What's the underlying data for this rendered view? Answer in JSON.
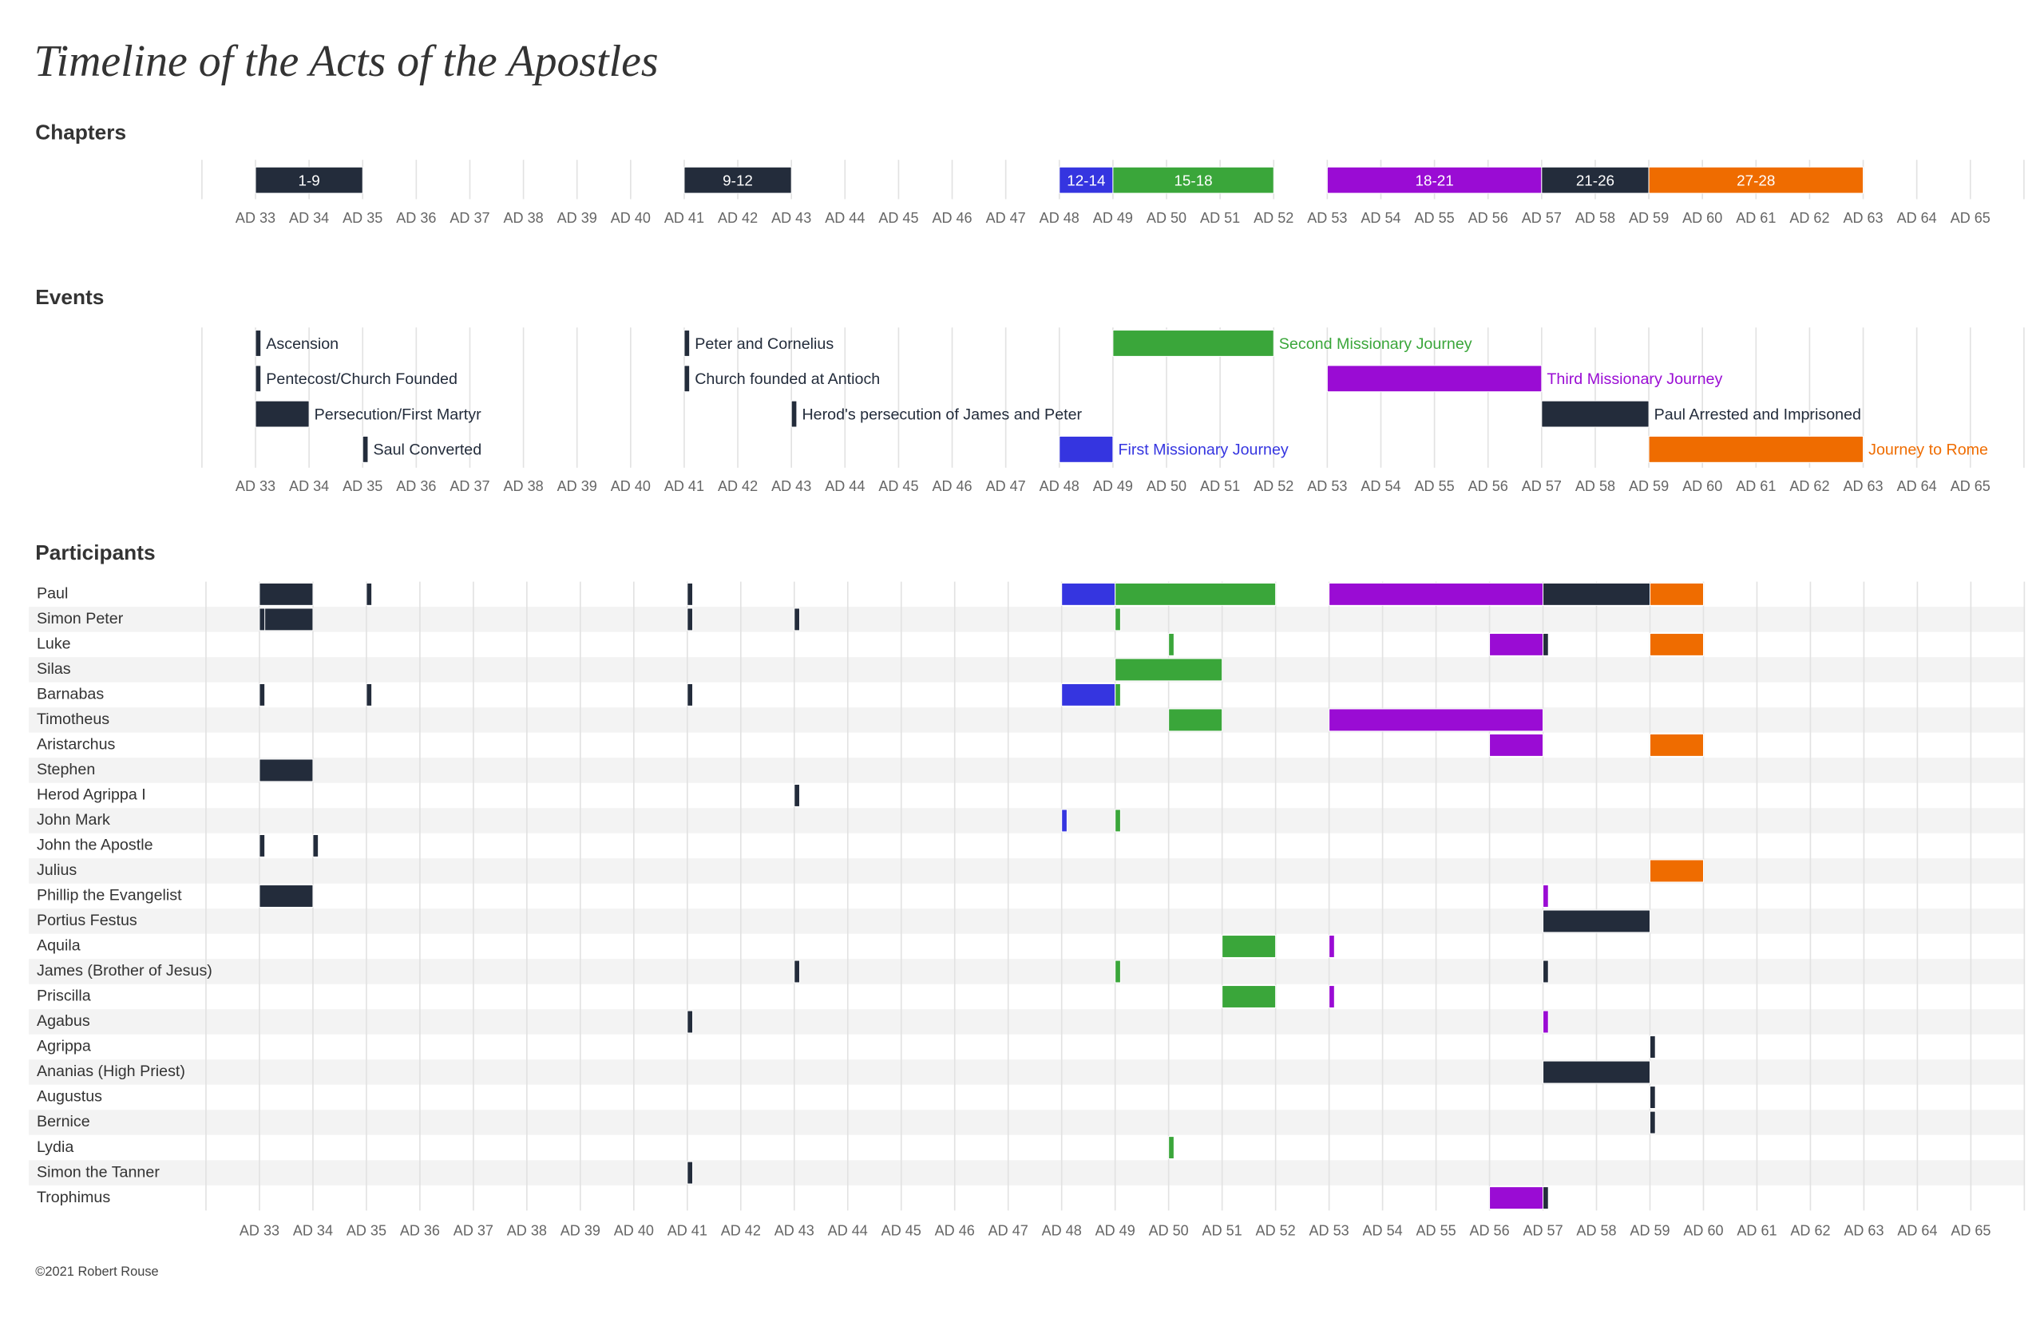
{
  "title": "Timeline of the Acts of the Apostles",
  "footer": "©2021 Robert Rouse",
  "chart_data": [
    {
      "type": "gantt",
      "title": "Chapters",
      "label_position": "inside",
      "xlim": [
        32,
        66
      ],
      "xticks": [
        {
          "value": 33,
          "label": "AD 33"
        },
        {
          "value": 34,
          "label": "AD 34"
        },
        {
          "value": 35,
          "label": "AD 35"
        },
        {
          "value": 36,
          "label": "AD 36"
        },
        {
          "value": 37,
          "label": "AD 37"
        },
        {
          "value": 38,
          "label": "AD 38"
        },
        {
          "value": 39,
          "label": "AD 39"
        },
        {
          "value": 40,
          "label": "AD 40"
        },
        {
          "value": 41,
          "label": "AD 41"
        },
        {
          "value": 42,
          "label": "AD 42"
        },
        {
          "value": 43,
          "label": "AD 43"
        },
        {
          "value": 44,
          "label": "AD 44"
        },
        {
          "value": 45,
          "label": "AD 45"
        },
        {
          "value": 46,
          "label": "AD 46"
        },
        {
          "value": 47,
          "label": "AD 47"
        },
        {
          "value": 48,
          "label": "AD 48"
        },
        {
          "value": 49,
          "label": "AD 49"
        },
        {
          "value": 50,
          "label": "AD 50"
        },
        {
          "value": 51,
          "label": "AD 51"
        },
        {
          "value": 52,
          "label": "AD 52"
        },
        {
          "value": 53,
          "label": "AD 53"
        },
        {
          "value": 54,
          "label": "AD 54"
        },
        {
          "value": 55,
          "label": "AD 55"
        },
        {
          "value": 56,
          "label": "AD 56"
        },
        {
          "value": 57,
          "label": "AD 57"
        },
        {
          "value": 58,
          "label": "AD 58"
        },
        {
          "value": 59,
          "label": "AD 59"
        },
        {
          "value": 60,
          "label": "AD 60"
        },
        {
          "value": 61,
          "label": "AD 61"
        },
        {
          "value": 62,
          "label": "AD 62"
        },
        {
          "value": 63,
          "label": "AD 63"
        },
        {
          "value": 64,
          "label": "AD 64"
        },
        {
          "value": 65,
          "label": "AD 65"
        }
      ],
      "rows": [
        {
          "bars": [
            {
              "label": "1-9",
              "start": 33,
              "end": 35,
              "color": "#232c3b"
            },
            {
              "label": "9-12",
              "start": 41,
              "end": 43,
              "color": "#232c3b"
            },
            {
              "label": "12-14",
              "start": 48,
              "end": 49,
              "color": "#3535e0"
            },
            {
              "label": "15-18",
              "start": 49,
              "end": 52,
              "color": "#3aa63a"
            },
            {
              "label": "18-21",
              "start": 53,
              "end": 57,
              "color": "#9a0cd4"
            },
            {
              "label": "21-26",
              "start": 57,
              "end": 59,
              "color": "#232c3b"
            },
            {
              "label": "27-28",
              "start": 59,
              "end": 63,
              "color": "#ef6c00"
            }
          ]
        }
      ]
    },
    {
      "type": "gantt",
      "title": "Events",
      "label_position": "right",
      "xlim": [
        32,
        66
      ],
      "xticks": [
        {
          "value": 33,
          "label": "AD 33"
        },
        {
          "value": 34,
          "label": "AD 34"
        },
        {
          "value": 35,
          "label": "AD 35"
        },
        {
          "value": 36,
          "label": "AD 36"
        },
        {
          "value": 37,
          "label": "AD 37"
        },
        {
          "value": 38,
          "label": "AD 38"
        },
        {
          "value": 39,
          "label": "AD 39"
        },
        {
          "value": 40,
          "label": "AD 40"
        },
        {
          "value": 41,
          "label": "AD 41"
        },
        {
          "value": 42,
          "label": "AD 42"
        },
        {
          "value": 43,
          "label": "AD 43"
        },
        {
          "value": 44,
          "label": "AD 44"
        },
        {
          "value": 45,
          "label": "AD 45"
        },
        {
          "value": 46,
          "label": "AD 46"
        },
        {
          "value": 47,
          "label": "AD 47"
        },
        {
          "value": 48,
          "label": "AD 48"
        },
        {
          "value": 49,
          "label": "AD 49"
        },
        {
          "value": 50,
          "label": "AD 50"
        },
        {
          "value": 51,
          "label": "AD 51"
        },
        {
          "value": 52,
          "label": "AD 52"
        },
        {
          "value": 53,
          "label": "AD 53"
        },
        {
          "value": 54,
          "label": "AD 54"
        },
        {
          "value": 55,
          "label": "AD 55"
        },
        {
          "value": 56,
          "label": "AD 56"
        },
        {
          "value": 57,
          "label": "AD 57"
        },
        {
          "value": 58,
          "label": "AD 58"
        },
        {
          "value": 59,
          "label": "AD 59"
        },
        {
          "value": 60,
          "label": "AD 60"
        },
        {
          "value": 61,
          "label": "AD 61"
        },
        {
          "value": 62,
          "label": "AD 62"
        },
        {
          "value": 63,
          "label": "AD 63"
        },
        {
          "value": 64,
          "label": "AD 64"
        },
        {
          "value": 65,
          "label": "AD 65"
        }
      ],
      "rows": [
        {
          "bars": [
            {
              "label": "Ascension",
              "start": 33,
              "end": 33.1,
              "color": "#232c3b"
            },
            {
              "label": "Peter and Cornelius",
              "start": 41,
              "end": 41.1,
              "color": "#232c3b"
            },
            {
              "label": "Second Missionary Journey",
              "start": 49,
              "end": 52,
              "color": "#3aa63a"
            }
          ]
        },
        {
          "bars": [
            {
              "label": "Pentecost/Church Founded",
              "start": 33,
              "end": 33.1,
              "color": "#232c3b"
            },
            {
              "label": "Church founded at Antioch",
              "start": 41,
              "end": 41.1,
              "color": "#232c3b"
            },
            {
              "label": "Third Missionary Journey",
              "start": 53,
              "end": 57,
              "color": "#9a0cd4"
            }
          ]
        },
        {
          "bars": [
            {
              "label": "Persecution/First Martyr",
              "start": 33,
              "end": 34,
              "color": "#232c3b"
            },
            {
              "label": "Herod's persecution of James and Peter",
              "start": 43,
              "end": 43.1,
              "color": "#232c3b"
            },
            {
              "label": "Paul Arrested and Imprisoned",
              "start": 57,
              "end": 59,
              "color": "#232c3b"
            }
          ]
        },
        {
          "bars": [
            {
              "label": "Saul Converted",
              "start": 35,
              "end": 35.1,
              "color": "#232c3b"
            },
            {
              "label": "First Missionary Journey",
              "start": 48,
              "end": 49,
              "color": "#3535e0"
            },
            {
              "label": "Journey to Rome",
              "start": 59,
              "end": 63,
              "color": "#ef6c00"
            }
          ]
        }
      ]
    },
    {
      "type": "gantt",
      "title": "Participants",
      "xlim": [
        32,
        66
      ],
      "xticks": [
        {
          "value": 33,
          "label": "AD 33"
        },
        {
          "value": 34,
          "label": "AD 34"
        },
        {
          "value": 35,
          "label": "AD 35"
        },
        {
          "value": 36,
          "label": "AD 36"
        },
        {
          "value": 37,
          "label": "AD 37"
        },
        {
          "value": 38,
          "label": "AD 38"
        },
        {
          "value": 39,
          "label": "AD 39"
        },
        {
          "value": 40,
          "label": "AD 40"
        },
        {
          "value": 41,
          "label": "AD 41"
        },
        {
          "value": 42,
          "label": "AD 42"
        },
        {
          "value": 43,
          "label": "AD 43"
        },
        {
          "value": 44,
          "label": "AD 44"
        },
        {
          "value": 45,
          "label": "AD 45"
        },
        {
          "value": 46,
          "label": "AD 46"
        },
        {
          "value": 47,
          "label": "AD 47"
        },
        {
          "value": 48,
          "label": "AD 48"
        },
        {
          "value": 49,
          "label": "AD 49"
        },
        {
          "value": 50,
          "label": "AD 50"
        },
        {
          "value": 51,
          "label": "AD 51"
        },
        {
          "value": 52,
          "label": "AD 52"
        },
        {
          "value": 53,
          "label": "AD 53"
        },
        {
          "value": 54,
          "label": "AD 54"
        },
        {
          "value": 55,
          "label": "AD 55"
        },
        {
          "value": 56,
          "label": "AD 56"
        },
        {
          "value": 57,
          "label": "AD 57"
        },
        {
          "value": 58,
          "label": "AD 58"
        },
        {
          "value": 59,
          "label": "AD 59"
        },
        {
          "value": 60,
          "label": "AD 60"
        },
        {
          "value": 61,
          "label": "AD 61"
        },
        {
          "value": 62,
          "label": "AD 62"
        },
        {
          "value": 63,
          "label": "AD 63"
        },
        {
          "value": 64,
          "label": "AD 64"
        },
        {
          "value": 65,
          "label": "AD 65"
        }
      ],
      "rows": [
        {
          "name": "Paul",
          "bars": [
            {
              "start": 33,
              "end": 34,
              "color": "#232c3b"
            },
            {
              "start": 35,
              "end": 35.1,
              "color": "#232c3b"
            },
            {
              "start": 41,
              "end": 41.1,
              "color": "#232c3b"
            },
            {
              "start": 48,
              "end": 49,
              "color": "#3535e0"
            },
            {
              "start": 49,
              "end": 52,
              "color": "#3aa63a"
            },
            {
              "start": 53,
              "end": 57,
              "color": "#9a0cd4"
            },
            {
              "start": 57,
              "end": 59,
              "color": "#232c3b"
            },
            {
              "start": 59,
              "end": 60,
              "color": "#ef6c00"
            }
          ]
        },
        {
          "name": "Simon Peter",
          "bars": [
            {
              "start": 33,
              "end": 34,
              "color": "#232c3b"
            },
            {
              "start": 33,
              "end": 33.1,
              "color": "#232c3b"
            },
            {
              "start": 41,
              "end": 41.1,
              "color": "#232c3b"
            },
            {
              "start": 43,
              "end": 43.1,
              "color": "#232c3b"
            },
            {
              "start": 49,
              "end": 49.1,
              "color": "#3aa63a"
            }
          ]
        },
        {
          "name": "Luke",
          "bars": [
            {
              "start": 50,
              "end": 50.1,
              "color": "#3aa63a"
            },
            {
              "start": 56,
              "end": 57,
              "color": "#9a0cd4"
            },
            {
              "start": 57,
              "end": 57.1,
              "color": "#232c3b"
            },
            {
              "start": 59,
              "end": 60,
              "color": "#ef6c00"
            }
          ]
        },
        {
          "name": "Silas",
          "bars": [
            {
              "start": 49,
              "end": 51,
              "color": "#3aa63a"
            }
          ]
        },
        {
          "name": "Barnabas",
          "bars": [
            {
              "start": 33,
              "end": 33.1,
              "color": "#232c3b"
            },
            {
              "start": 35,
              "end": 35.1,
              "color": "#232c3b"
            },
            {
              "start": 41,
              "end": 41.1,
              "color": "#232c3b"
            },
            {
              "start": 48,
              "end": 49,
              "color": "#3535e0"
            },
            {
              "start": 49,
              "end": 49.1,
              "color": "#3aa63a"
            }
          ]
        },
        {
          "name": "Timotheus",
          "bars": [
            {
              "start": 50,
              "end": 51,
              "color": "#3aa63a"
            },
            {
              "start": 53,
              "end": 57,
              "color": "#9a0cd4"
            }
          ]
        },
        {
          "name": "Aristarchus",
          "bars": [
            {
              "start": 56,
              "end": 57,
              "color": "#9a0cd4"
            },
            {
              "start": 59,
              "end": 60,
              "color": "#ef6c00"
            }
          ]
        },
        {
          "name": "Stephen",
          "bars": [
            {
              "start": 33,
              "end": 34,
              "color": "#232c3b"
            }
          ]
        },
        {
          "name": "Herod Agrippa I",
          "bars": [
            {
              "start": 43,
              "end": 43.1,
              "color": "#232c3b"
            }
          ]
        },
        {
          "name": "John Mark",
          "bars": [
            {
              "start": 48,
              "end": 48.1,
              "color": "#3535e0"
            },
            {
              "start": 49,
              "end": 49.1,
              "color": "#3aa63a"
            }
          ]
        },
        {
          "name": "John the Apostle",
          "bars": [
            {
              "start": 33,
              "end": 33.1,
              "color": "#232c3b"
            },
            {
              "start": 34,
              "end": 34.1,
              "color": "#232c3b"
            }
          ]
        },
        {
          "name": "Julius",
          "bars": [
            {
              "start": 59,
              "end": 60,
              "color": "#ef6c00"
            }
          ]
        },
        {
          "name": "Phillip the Evangelist",
          "bars": [
            {
              "start": 33,
              "end": 34,
              "color": "#232c3b"
            },
            {
              "start": 57,
              "end": 57.1,
              "color": "#9a0cd4"
            }
          ]
        },
        {
          "name": "Portius Festus",
          "bars": [
            {
              "start": 57,
              "end": 59,
              "color": "#232c3b"
            }
          ]
        },
        {
          "name": "Aquila",
          "bars": [
            {
              "start": 51,
              "end": 52,
              "color": "#3aa63a"
            },
            {
              "start": 53,
              "end": 53.1,
              "color": "#9a0cd4"
            }
          ]
        },
        {
          "name": "James (Brother of Jesus)",
          "bars": [
            {
              "start": 43,
              "end": 43.1,
              "color": "#232c3b"
            },
            {
              "start": 49,
              "end": 49.1,
              "color": "#3aa63a"
            },
            {
              "start": 57,
              "end": 57.1,
              "color": "#232c3b"
            }
          ]
        },
        {
          "name": "Priscilla",
          "bars": [
            {
              "start": 51,
              "end": 52,
              "color": "#3aa63a"
            },
            {
              "start": 53,
              "end": 53.1,
              "color": "#9a0cd4"
            }
          ]
        },
        {
          "name": "Agabus",
          "bars": [
            {
              "start": 41,
              "end": 41.1,
              "color": "#232c3b"
            },
            {
              "start": 57,
              "end": 57.1,
              "color": "#9a0cd4"
            }
          ]
        },
        {
          "name": "Agrippa",
          "bars": [
            {
              "start": 59,
              "end": 59.1,
              "color": "#232c3b"
            }
          ]
        },
        {
          "name": "Ananias (High Priest)",
          "bars": [
            {
              "start": 57,
              "end": 59,
              "color": "#232c3b"
            }
          ]
        },
        {
          "name": "Augustus",
          "bars": [
            {
              "start": 59,
              "end": 59.1,
              "color": "#232c3b"
            }
          ]
        },
        {
          "name": "Bernice",
          "bars": [
            {
              "start": 59,
              "end": 59.1,
              "color": "#232c3b"
            }
          ]
        },
        {
          "name": "Lydia",
          "bars": [
            {
              "start": 50,
              "end": 50.1,
              "color": "#3aa63a"
            }
          ]
        },
        {
          "name": "Simon the Tanner",
          "bars": [
            {
              "start": 41,
              "end": 41.1,
              "color": "#232c3b"
            }
          ]
        },
        {
          "name": "Trophimus",
          "bars": [
            {
              "start": 56,
              "end": 57,
              "color": "#9a0cd4"
            },
            {
              "start": 57,
              "end": 57.1,
              "color": "#232c3b"
            }
          ]
        }
      ]
    }
  ]
}
